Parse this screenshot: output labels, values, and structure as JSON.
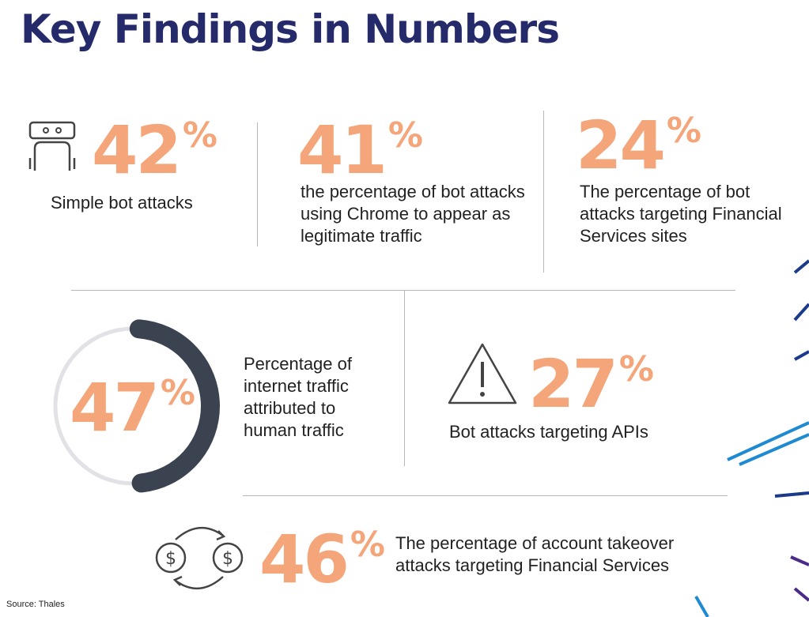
{
  "title": "Key Findings in Numbers",
  "findings": [
    {
      "value": 42,
      "unit": "%",
      "text": "Simple bot attacks"
    },
    {
      "value": 41,
      "unit": "%",
      "text": "the percentage of bot attacks using Chrome to appear as legitimate traffic"
    },
    {
      "value": 24,
      "unit": "%",
      "text": "The percentage of bot attacks targeting Financial Services sites"
    },
    {
      "value": 47,
      "unit": "%",
      "text": "Percentage of internet traffic attributed to human traffic"
    },
    {
      "value": 27,
      "unit": "%",
      "text": "Bot attacks targeting APIs"
    },
    {
      "value": 46,
      "unit": "%",
      "text": "The percentage of account takeover attacks targeting Financial Services"
    }
  ],
  "source": "Source: Thales"
}
